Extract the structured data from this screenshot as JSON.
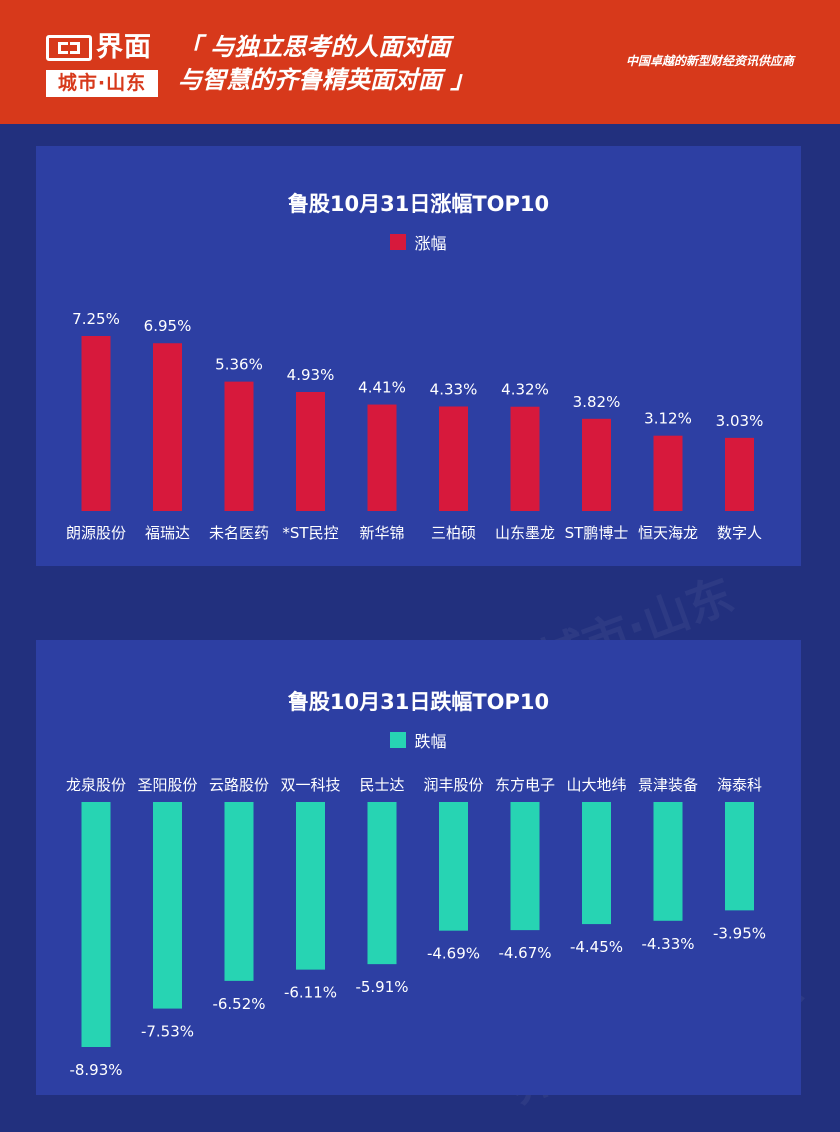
{
  "header": {
    "logo_name": "界面",
    "logo_city": "城市·山东",
    "slogan_line1": "「 与独立思考的人面对面",
    "slogan_line2": "与智慧的齐鲁精英面对面 」",
    "tagline": "中国卓越的新型财经资讯供应商"
  },
  "colors": {
    "header_bg": "#d7391b",
    "page_bg": "#22307e",
    "panel_bg": "#2d3fa3",
    "gain": "#d7193c",
    "loss": "#27d4b3"
  },
  "watermark_text": "界面 城市·山东",
  "chart_data": [
    {
      "type": "bar",
      "title": "鲁股10月31日涨幅TOP10",
      "legend": "涨幅",
      "categories": [
        "朗源股份",
        "福瑞达",
        "未名医药",
        "*ST民控",
        "新华锦",
        "三柏硕",
        "山东墨龙",
        "ST鹏博士",
        "恒天海龙",
        "数字人"
      ],
      "values": [
        7.25,
        6.95,
        5.36,
        4.93,
        4.41,
        4.33,
        4.32,
        3.82,
        3.12,
        3.03
      ],
      "value_labels": [
        "7.25%",
        "6.95%",
        "5.36%",
        "4.93%",
        "4.41%",
        "4.33%",
        "4.32%",
        "3.82%",
        "3.12%",
        "3.03%"
      ],
      "ylim": [
        0,
        7.25
      ],
      "grid": false,
      "legend_position": "top-center"
    },
    {
      "type": "bar",
      "title": "鲁股10月31日跌幅TOP10",
      "legend": "跌幅",
      "categories": [
        "龙泉股份",
        "圣阳股份",
        "云路股份",
        "双一科技",
        "民士达",
        "润丰股份",
        "东方电子",
        "山大地纬",
        "景津装备",
        "海泰科"
      ],
      "values": [
        -8.93,
        -7.53,
        -6.52,
        -6.11,
        -5.91,
        -4.69,
        -4.67,
        -4.45,
        -4.33,
        -3.95
      ],
      "value_labels": [
        "-8.93%",
        "-7.53%",
        "-6.52%",
        "-6.11%",
        "-5.91%",
        "-4.69%",
        "-4.67%",
        "-4.45%",
        "-4.33%",
        "-3.95%"
      ],
      "ylim": [
        -8.93,
        0
      ],
      "grid": false,
      "legend_position": "top-center"
    }
  ]
}
